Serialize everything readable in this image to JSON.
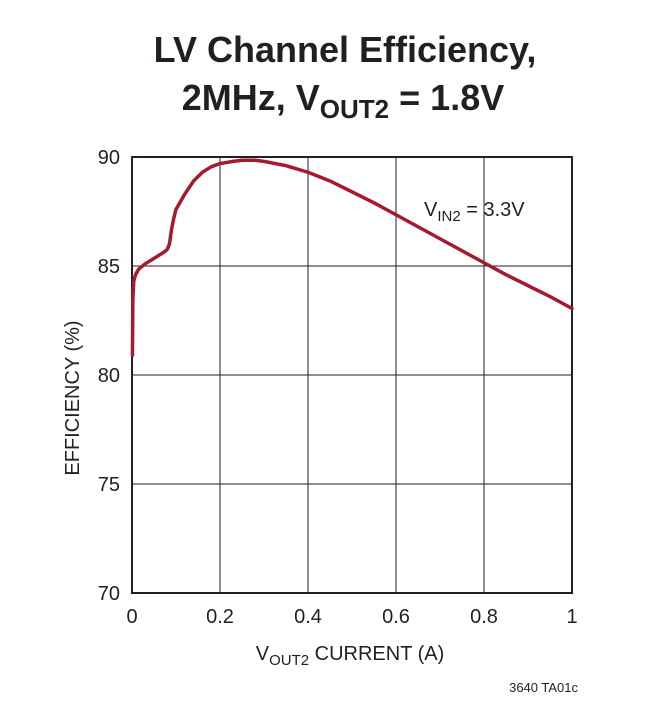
{
  "chart_data": {
    "type": "line",
    "title_line1": "LV Channel Efficiency,",
    "title_line2_prefix": "2MHz, V",
    "title_line2_sub": "OUT2",
    "title_line2_suffix": " = 1.8V",
    "xlabel_prefix": "V",
    "xlabel_sub": "OUT2",
    "xlabel_suffix": " CURRENT (A)",
    "ylabel": "EFFICIENCY (%)",
    "xlim": [
      0,
      1
    ],
    "ylim": [
      70,
      90
    ],
    "x_ticks": [
      0,
      0.2,
      0.4,
      0.6,
      0.8,
      1
    ],
    "x_tick_labels": [
      "0",
      "0.2",
      "0.4",
      "0.6",
      "0.8",
      "1"
    ],
    "y_ticks": [
      70,
      75,
      80,
      85,
      90
    ],
    "y_tick_labels": [
      "70",
      "75",
      "80",
      "85",
      "90"
    ],
    "grid": true,
    "series": [
      {
        "name": "VIN2 = 3.3V",
        "color": "#a6192e",
        "x": [
          0.001,
          0.002,
          0.004,
          0.008,
          0.015,
          0.03,
          0.05,
          0.07,
          0.08,
          0.085,
          0.09,
          0.095,
          0.1,
          0.11,
          0.12,
          0.14,
          0.16,
          0.18,
          0.2,
          0.23,
          0.25,
          0.28,
          0.3,
          0.35,
          0.4,
          0.45,
          0.5,
          0.55,
          0.6,
          0.65,
          0.7,
          0.75,
          0.8,
          0.85,
          0.9,
          0.95,
          1.0
        ],
        "values": [
          80.9,
          83.5,
          84.3,
          84.6,
          84.85,
          85.1,
          85.35,
          85.6,
          85.75,
          86.0,
          86.7,
          87.2,
          87.6,
          87.95,
          88.3,
          88.9,
          89.3,
          89.55,
          89.7,
          89.8,
          89.85,
          89.85,
          89.8,
          89.6,
          89.3,
          88.9,
          88.4,
          87.9,
          87.35,
          86.8,
          86.25,
          85.7,
          85.15,
          84.6,
          84.1,
          83.6,
          83.05
        ]
      }
    ],
    "annotation_prefix": "V",
    "annotation_sub": "IN2",
    "annotation_suffix": " = 3.3V"
  },
  "footer_code": "3640 TA01c"
}
